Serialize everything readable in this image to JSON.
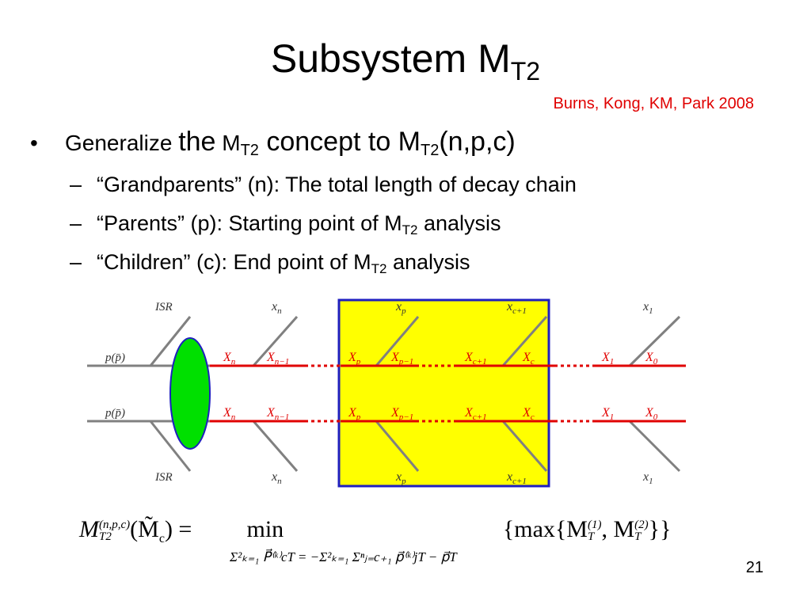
{
  "slide": {
    "title": {
      "text": "Subsystem M",
      "sub": "T2"
    },
    "citation": "Burns, Kong, KM, Park 2008",
    "bullet_marker": "•",
    "dash_marker": "–",
    "bullet": {
      "parts": [
        "Generalize ",
        "the",
        " M",
        "T2",
        " concept to M",
        "T2",
        "(n,p,c)"
      ]
    },
    "sub_bullets": [
      {
        "parts": [
          "“Grandparents” (n): The total length of decay chain"
        ]
      },
      {
        "parts": [
          "“Parents” (p): Starting point of M",
          "T2",
          " analysis"
        ]
      },
      {
        "parts": [
          "“Children” (c): End point of M",
          "T2",
          " analysis"
        ]
      }
    ],
    "diagram": {
      "isr": "ISR",
      "incoming": "p(p̄)",
      "visible": [
        {
          "base": "x",
          "sub": "n"
        },
        {
          "base": "x",
          "sub": "p"
        },
        {
          "base": "x",
          "sub": "c+1"
        },
        {
          "base": "x",
          "sub": "1"
        }
      ],
      "states": [
        {
          "base": "X",
          "sub": "n"
        },
        {
          "base": "X",
          "sub": "n−1"
        },
        {
          "base": "X",
          "sub": "p"
        },
        {
          "base": "X",
          "sub": "p−1"
        },
        {
          "base": "X",
          "sub": "c+1"
        },
        {
          "base": "X",
          "sub": "c"
        },
        {
          "base": "X",
          "sub": "1"
        },
        {
          "base": "X",
          "sub": "0"
        }
      ]
    },
    "formula": {
      "lhs": {
        "base": "M",
        "sup": "(n,p,c)",
        "sub": "T2",
        "arg": "(M̃",
        "arg_sub": "c",
        "rest": ") ="
      },
      "operator": "min",
      "constraint": "Σ²ₖ₌₁ P⃗⁽ᵏ⁾cT = −Σ²ₖ₌₁ Σⁿⱼ₌c₊₁ p⃗⁽ᵏ⁾jT − p⃗T",
      "rhs": {
        "open": "{max{M",
        "sup1": "(1)",
        "sub1": "T",
        "mid": ", M",
        "sup2": "(2)",
        "sub2": "T",
        "close": "}}"
      }
    },
    "page_number": "21"
  }
}
